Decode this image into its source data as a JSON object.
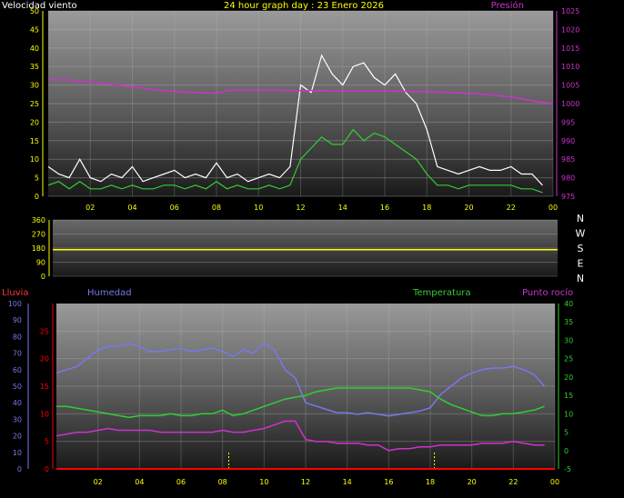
{
  "header": {
    "left_label": "Velocidad viento",
    "title": "24 hour graph day : 23 Enero 2026",
    "right_label": "Presión"
  },
  "panel_labels": {
    "rain": "Lluvia",
    "humidity": "Humedad",
    "temperature": "Temperatura",
    "dewpoint": "Punto rocío"
  },
  "compass_letters": [
    "N",
    "W",
    "S",
    "E",
    "N"
  ],
  "colors": {
    "wind_axis": "#ffff00",
    "pressure": "#cc33cc",
    "wind_gust": "#ffffff",
    "wind_avg": "#33cc33",
    "direction": "#ffff00",
    "rain": "#ff0000",
    "humidity": "#7777ee",
    "temperature": "#33cc33",
    "dewpoint": "#cc33cc"
  },
  "chart_data": [
    {
      "type": "line",
      "name": "wind-pressure",
      "x_tick_labels": [
        "02",
        "04",
        "06",
        "08",
        "10",
        "12",
        "14",
        "16",
        "18",
        "20",
        "22",
        "00"
      ],
      "y_left_ticks": [
        "50",
        "45",
        "40",
        "35",
        "30",
        "25",
        "20",
        "15",
        "10",
        "5",
        "0"
      ],
      "y_right_ticks": [
        "1025",
        "1020",
        "1015",
        "1010",
        "1005",
        "1000",
        "995",
        "990",
        "985",
        "980",
        "975"
      ],
      "ylim_left": [
        0,
        50
      ],
      "ylim_right": [
        975,
        1025
      ],
      "xlim": [
        0,
        24
      ],
      "series": [
        {
          "key": "gust",
          "x": [
            0,
            0.5,
            1,
            1.5,
            2,
            2.5,
            3,
            3.5,
            4,
            4.5,
            5,
            5.5,
            6,
            6.5,
            7,
            7.5,
            8,
            8.5,
            9,
            9.5,
            10,
            10.5,
            11,
            11.5,
            12,
            12.5,
            13,
            13.5,
            14,
            14.5,
            15,
            15.5,
            16,
            16.5,
            17,
            17.5,
            18,
            18.5,
            19,
            19.5,
            20,
            20.5,
            21,
            21.5,
            22,
            22.5,
            23,
            23.5
          ],
          "values": [
            8,
            6,
            5,
            10,
            5,
            4,
            6,
            5,
            8,
            4,
            5,
            6,
            7,
            5,
            6,
            5,
            9,
            5,
            6,
            4,
            5,
            6,
            5,
            8,
            30,
            28,
            38,
            33,
            30,
            35,
            36,
            32,
            30,
            33,
            28,
            25,
            18,
            8,
            7,
            6,
            7,
            8,
            7,
            7,
            8,
            6,
            6,
            3
          ]
        },
        {
          "key": "average",
          "x": [
            0,
            0.5,
            1,
            1.5,
            2,
            2.5,
            3,
            3.5,
            4,
            4.5,
            5,
            5.5,
            6,
            6.5,
            7,
            7.5,
            8,
            8.5,
            9,
            9.5,
            10,
            10.5,
            11,
            11.5,
            12,
            12.5,
            13,
            13.5,
            14,
            14.5,
            15,
            15.5,
            16,
            16.5,
            17,
            17.5,
            18,
            18.5,
            19,
            19.5,
            20,
            20.5,
            21,
            21.5,
            22,
            22.5,
            23,
            23.5
          ],
          "values": [
            3,
            4,
            2,
            4,
            2,
            2,
            3,
            2,
            3,
            2,
            2,
            3,
            3,
            2,
            3,
            2,
            4,
            2,
            3,
            2,
            2,
            3,
            2,
            3,
            10,
            13,
            16,
            14,
            14,
            18,
            15,
            17,
            16,
            14,
            12,
            10,
            6,
            3,
            3,
            2,
            3,
            3,
            3,
            3,
            3,
            2,
            2,
            1
          ]
        },
        {
          "key": "pressure",
          "x": [
            0,
            1,
            2,
            3,
            4,
            5,
            6,
            7,
            8,
            8.5,
            9,
            10,
            11,
            12,
            13,
            14,
            15,
            16,
            17,
            18,
            19,
            20,
            21,
            22,
            23,
            24
          ],
          "values": [
            1006.5,
            1006.3,
            1005.8,
            1005.2,
            1004.5,
            1003.8,
            1003.2,
            1003.0,
            1002.8,
            1003.5,
            1003.6,
            1003.6,
            1003.6,
            1003.5,
            1003.5,
            1003.4,
            1003.4,
            1003.4,
            1003.3,
            1003.2,
            1003.0,
            1002.8,
            1002.4,
            1001.8,
            1000.8,
            1000.0
          ]
        }
      ]
    },
    {
      "type": "line",
      "name": "wind-direction",
      "y_ticks": [
        "360",
        "270",
        "180",
        "90",
        "0"
      ],
      "ylim": [
        0,
        360
      ],
      "xlim": [
        0,
        24
      ],
      "series": [
        {
          "key": "direction",
          "x": [
            0,
            24
          ],
          "values": [
            170,
            170
          ]
        }
      ]
    },
    {
      "type": "line",
      "name": "humidity-temperature",
      "x_tick_labels": [
        "02",
        "04",
        "06",
        "08",
        "10",
        "12",
        "14",
        "16",
        "18",
        "20",
        "22",
        "00"
      ],
      "y_left_ticks": [
        "100",
        "90",
        "80",
        "70",
        "60",
        "50",
        "40",
        "30",
        "20",
        "10",
        "0"
      ],
      "y_rain_ticks": [
        "25",
        "20",
        "15",
        "10",
        "5",
        "0"
      ],
      "y_right_ticks": [
        "40",
        "35",
        "30",
        "25",
        "20",
        "15",
        "10",
        "5",
        "0",
        "-5"
      ],
      "ylim_left": [
        0,
        100
      ],
      "ylim_rain": [
        0,
        30
      ],
      "ylim_right": [
        -5,
        40
      ],
      "xlim": [
        0,
        24
      ],
      "series": [
        {
          "key": "humidity",
          "x": [
            0,
            0.5,
            1,
            1.5,
            2,
            2.5,
            3,
            3.5,
            4,
            4.5,
            5,
            5.5,
            6,
            6.5,
            7,
            7.5,
            8,
            8.5,
            9,
            9.5,
            10,
            10.5,
            11,
            11.5,
            12,
            12.5,
            13,
            13.5,
            14,
            14.5,
            15,
            15.5,
            16,
            16.5,
            17,
            17.5,
            18,
            18.5,
            19,
            19.5,
            20,
            20.5,
            21,
            21.5,
            22,
            22.5,
            23,
            23.5
          ],
          "values": [
            58,
            60,
            62,
            67,
            72,
            74,
            74,
            76,
            74,
            71,
            71,
            72,
            73,
            71,
            72,
            73,
            71,
            68,
            72,
            70,
            76,
            72,
            60,
            55,
            40,
            38,
            36,
            34,
            34,
            33,
            34,
            33,
            32,
            33,
            34,
            35,
            37,
            45,
            50,
            55,
            58,
            60,
            61,
            61,
            62,
            60,
            57,
            50
          ]
        },
        {
          "key": "temperature",
          "x": [
            0,
            0.5,
            1,
            1.5,
            2,
            2.5,
            3,
            3.5,
            4,
            4.5,
            5,
            5.5,
            6,
            6.5,
            7,
            7.5,
            8,
            8.5,
            9,
            9.5,
            10,
            10.5,
            11,
            11.5,
            12,
            12.5,
            13,
            13.5,
            14,
            14.5,
            15,
            15.5,
            16,
            16.5,
            17,
            17.5,
            18,
            18.5,
            19,
            19.5,
            20,
            20.5,
            21,
            21.5,
            22,
            22.5,
            23,
            23.5
          ],
          "values": [
            12,
            12,
            11.5,
            11,
            10.5,
            10,
            9.5,
            9,
            9.5,
            9.5,
            9.5,
            10,
            9.5,
            9.5,
            10,
            10,
            11,
            9.5,
            10,
            11,
            12,
            13,
            14,
            14.5,
            15,
            16,
            16.5,
            17,
            17,
            17,
            17,
            17,
            17,
            17,
            17,
            16.5,
            16,
            14,
            12.5,
            11.5,
            10.5,
            9.5,
            9.5,
            10,
            10,
            10.5,
            11,
            12
          ]
        },
        {
          "key": "dewpoint",
          "x": [
            0,
            0.5,
            1,
            1.5,
            2,
            2.5,
            3,
            3.5,
            4,
            4.5,
            5,
            5.5,
            6,
            6.5,
            7,
            7.5,
            8,
            8.5,
            9,
            9.5,
            10,
            10.5,
            11,
            11.5,
            12,
            12.5,
            13,
            13.5,
            14,
            14.5,
            15,
            15.5,
            16,
            16.5,
            17,
            17.5,
            18,
            18.5,
            19,
            19.5,
            20,
            20.5,
            21,
            21.5,
            22,
            22.5,
            23,
            23.5
          ],
          "values": [
            4,
            4.5,
            5,
            5,
            5.5,
            6,
            5.5,
            5.5,
            5.5,
            5.5,
            5,
            5,
            5,
            5,
            5,
            5,
            5.5,
            5,
            5,
            5.5,
            6,
            7,
            8,
            8,
            3,
            2.5,
            2.5,
            2,
            2,
            2,
            1.5,
            1.5,
            0,
            0.5,
            0.5,
            1,
            1,
            1.5,
            1.5,
            1.5,
            1.5,
            2,
            2,
            2,
            2.5,
            2,
            1.5,
            1.5
          ]
        },
        {
          "key": "rain",
          "x": [
            0,
            24
          ],
          "values": [
            0,
            0
          ]
        }
      ]
    }
  ]
}
